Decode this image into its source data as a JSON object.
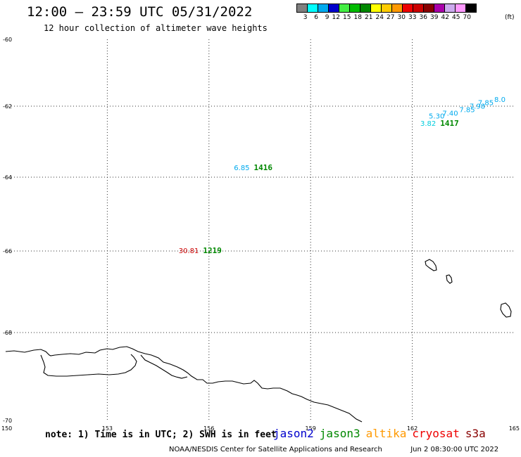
{
  "title": "12:00 – 23:59 UTC 05/31/2022",
  "subtitle": "12 hour collection of altimeter wave heights",
  "legend": {
    "swatches": [
      "#808080",
      "#00ffff",
      "#00aaee",
      "#0000cc",
      "#44ee44",
      "#00bb00",
      "#008800",
      "#ffff00",
      "#ffcc00",
      "#ff9900",
      "#ee0000",
      "#cc0000",
      "#880000",
      "#aa00aa",
      "#ccaaee",
      "#ff99ff",
      "#000000"
    ],
    "labels": [
      "3",
      "6",
      "9",
      "12",
      "15",
      "18",
      "21",
      "24",
      "27",
      "30",
      "33",
      "36",
      "39",
      "42",
      "45",
      "70"
    ],
    "unit": "(ft)"
  },
  "axes": {
    "lat_labels": [
      "-60",
      "-62",
      "-64",
      "-66",
      "-68",
      "-70"
    ],
    "lon_labels": [
      "150",
      "153",
      "156",
      "159",
      "162",
      "165"
    ]
  },
  "observations": [
    {
      "swh": "6.85",
      "swh_color": "#00aaee",
      "time": "1416",
      "time_color": "#008800",
      "lon": 157.2,
      "lat": -63.8
    },
    {
      "swh": "30.81",
      "swh_color": "#cc0000",
      "time": "1219",
      "time_color": "#008800",
      "lon": 155.7,
      "lat": -66.05
    },
    {
      "swh": "3.82",
      "swh_color": "#00ccdd",
      "time": "1417",
      "time_color": "#008800",
      "lon": 162.7,
      "lat": -62.55
    },
    {
      "swh": "5.30",
      "swh_color": "#00aaee",
      "time": "",
      "time_color": "#008800",
      "lon": 162.95,
      "lat": -62.35
    },
    {
      "swh": "7.40",
      "swh_color": "#00aaee",
      "time": "",
      "time_color": "#008800",
      "lon": 163.35,
      "lat": -62.27
    },
    {
      "swh": "7.85",
      "swh_color": "#00aaee",
      "time": "",
      "time_color": "#008800",
      "lon": 163.85,
      "lat": -62.17
    },
    {
      "swh": "7.98",
      "swh_color": "#00aaee",
      "time": "",
      "time_color": "#008800",
      "lon": 164.15,
      "lat": -62.07
    },
    {
      "swh": "7.85",
      "swh_color": "#00aaee",
      "time": "",
      "time_color": "#008800",
      "lon": 164.4,
      "lat": -61.97
    },
    {
      "swh": "8.0",
      "swh_color": "#00aaee",
      "time": "",
      "time_color": "#008800",
      "lon": 164.75,
      "lat": -61.87
    }
  ],
  "note": "note: 1) Time is in UTC; 2) SWH is in feet",
  "satellites": [
    {
      "name": "jason2",
      "color": "#0000cc"
    },
    {
      "name": "jason3",
      "color": "#008800"
    },
    {
      "name": "altika",
      "color": "#ff9900"
    },
    {
      "name": "cryosat",
      "color": "#ee0000"
    },
    {
      "name": "s3a",
      "color": "#880000"
    }
  ],
  "footer": {
    "credit": "NOAA/NESDIS Center for Satellite Applications and Research",
    "timestamp": "Jun  2 08:30:00 UTC 2022"
  }
}
